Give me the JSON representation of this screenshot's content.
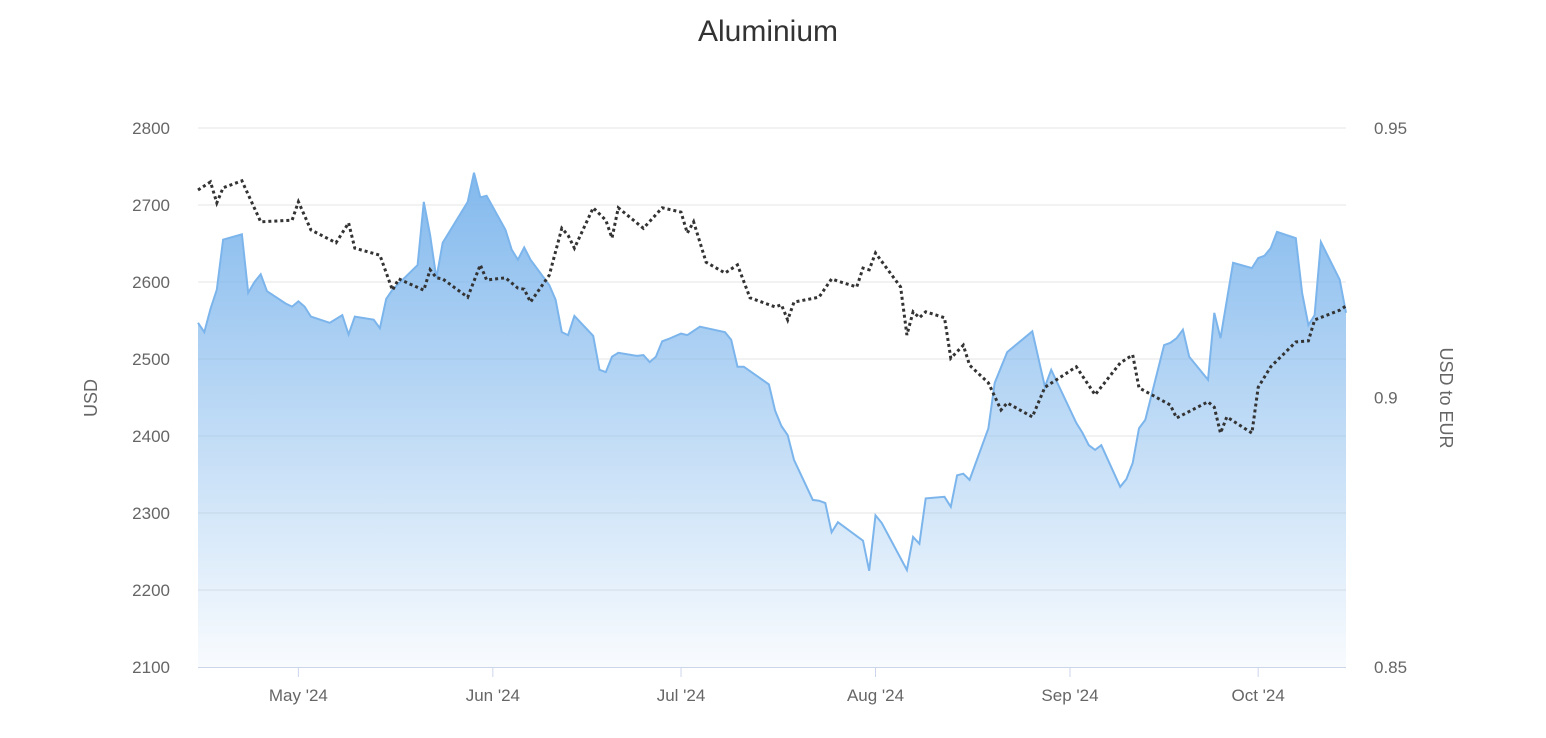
{
  "chart_data": {
    "type": "area",
    "title": "Aluminium",
    "x_type": "date",
    "xlim": [
      "2024-04-15",
      "2024-10-15"
    ],
    "x_ticks": [
      {
        "date": "2024-05-01",
        "label": "May '24"
      },
      {
        "date": "2024-06-01",
        "label": "Jun '24"
      },
      {
        "date": "2024-07-01",
        "label": "Jul '24"
      },
      {
        "date": "2024-08-01",
        "label": "Aug '24"
      },
      {
        "date": "2024-09-01",
        "label": "Sep '24"
      },
      {
        "date": "2024-10-01",
        "label": "Oct '24"
      }
    ],
    "y_left": {
      "label": "USD",
      "ylim": [
        2100,
        2800
      ],
      "ticks": [
        "2100",
        "2200",
        "2300",
        "2400",
        "2500",
        "2600",
        "2700",
        "2800"
      ]
    },
    "y_right": {
      "label": "USD to EUR",
      "ylim": [
        0.85,
        0.95
      ],
      "ticks": [
        "0.85",
        "0.9",
        "0.95"
      ]
    },
    "grid": true,
    "colors": {
      "area_line": "#7cb5ec",
      "area_top": "#7cb5ec",
      "fx_line": "#333333",
      "grid": "#e6e6e6",
      "axis": "#ccd6eb"
    },
    "series": [
      {
        "type": "area",
        "axis": "left",
        "points": [
          [
            "2024-04-15",
            2547
          ],
          [
            "2024-04-16",
            2535
          ],
          [
            "2024-04-17",
            2565
          ],
          [
            "2024-04-18",
            2590
          ],
          [
            "2024-04-19",
            2655
          ],
          [
            "2024-04-22",
            2662
          ],
          [
            "2024-04-23",
            2586
          ],
          [
            "2024-04-24",
            2600
          ],
          [
            "2024-04-25",
            2610
          ],
          [
            "2024-04-26",
            2588
          ],
          [
            "2024-04-29",
            2572
          ],
          [
            "2024-04-30",
            2568
          ],
          [
            "2024-05-01",
            2575
          ],
          [
            "2024-05-02",
            2568
          ],
          [
            "2024-05-03",
            2555
          ],
          [
            "2024-05-06",
            2547
          ],
          [
            "2024-05-08",
            2557
          ],
          [
            "2024-05-09",
            2532
          ],
          [
            "2024-05-10",
            2555
          ],
          [
            "2024-05-13",
            2551
          ],
          [
            "2024-05-14",
            2540
          ],
          [
            "2024-05-15",
            2578
          ],
          [
            "2024-05-16",
            2590
          ],
          [
            "2024-05-20",
            2622
          ],
          [
            "2024-05-21",
            2704
          ],
          [
            "2024-05-22",
            2661
          ],
          [
            "2024-05-23",
            2605
          ],
          [
            "2024-05-24",
            2651
          ],
          [
            "2024-05-28",
            2704
          ],
          [
            "2024-05-29",
            2742
          ],
          [
            "2024-05-30",
            2710
          ],
          [
            "2024-05-31",
            2712
          ],
          [
            "2024-06-03",
            2668
          ],
          [
            "2024-06-04",
            2642
          ],
          [
            "2024-06-05",
            2629
          ],
          [
            "2024-06-06",
            2645
          ],
          [
            "2024-06-07",
            2629
          ],
          [
            "2024-06-10",
            2596
          ],
          [
            "2024-06-11",
            2577
          ],
          [
            "2024-06-12",
            2535
          ],
          [
            "2024-06-13",
            2531
          ],
          [
            "2024-06-14",
            2556
          ],
          [
            "2024-06-17",
            2530
          ],
          [
            "2024-06-18",
            2486
          ],
          [
            "2024-06-19",
            2483
          ],
          [
            "2024-06-20",
            2503
          ],
          [
            "2024-06-21",
            2508
          ],
          [
            "2024-06-24",
            2504
          ],
          [
            "2024-06-25",
            2505
          ],
          [
            "2024-06-26",
            2496
          ],
          [
            "2024-06-27",
            2503
          ],
          [
            "2024-06-28",
            2523
          ],
          [
            "2024-06-29",
            2526
          ],
          [
            "2024-07-01",
            2533
          ],
          [
            "2024-07-02",
            2531
          ],
          [
            "2024-07-04",
            2542
          ],
          [
            "2024-07-08",
            2535
          ],
          [
            "2024-07-09",
            2525
          ],
          [
            "2024-07-10",
            2490
          ],
          [
            "2024-07-11",
            2490
          ],
          [
            "2024-07-15",
            2467
          ],
          [
            "2024-07-16",
            2433
          ],
          [
            "2024-07-17",
            2413
          ],
          [
            "2024-07-18",
            2401
          ],
          [
            "2024-07-19",
            2369
          ],
          [
            "2024-07-22",
            2317
          ],
          [
            "2024-07-23",
            2316
          ],
          [
            "2024-07-24",
            2313
          ],
          [
            "2024-07-25",
            2275
          ],
          [
            "2024-07-26",
            2288
          ],
          [
            "2024-07-30",
            2264
          ],
          [
            "2024-07-31",
            2225
          ],
          [
            "2024-08-01",
            2297
          ],
          [
            "2024-08-02",
            2287
          ],
          [
            "2024-08-06",
            2226
          ],
          [
            "2024-08-07",
            2269
          ],
          [
            "2024-08-08",
            2260
          ],
          [
            "2024-08-09",
            2319
          ],
          [
            "2024-08-12",
            2321
          ],
          [
            "2024-08-13",
            2308
          ],
          [
            "2024-08-14",
            2349
          ],
          [
            "2024-08-15",
            2351
          ],
          [
            "2024-08-16",
            2343
          ],
          [
            "2024-08-19",
            2410
          ],
          [
            "2024-08-20",
            2469
          ],
          [
            "2024-08-22",
            2509
          ],
          [
            "2024-08-26",
            2536
          ],
          [
            "2024-08-28",
            2464
          ],
          [
            "2024-08-29",
            2486
          ],
          [
            "2024-09-02",
            2417
          ],
          [
            "2024-09-03",
            2404
          ],
          [
            "2024-09-04",
            2388
          ],
          [
            "2024-09-05",
            2382
          ],
          [
            "2024-09-06",
            2388
          ],
          [
            "2024-09-09",
            2334
          ],
          [
            "2024-09-10",
            2344
          ],
          [
            "2024-09-11",
            2365
          ],
          [
            "2024-09-12",
            2410
          ],
          [
            "2024-09-13",
            2421
          ],
          [
            "2024-09-16",
            2518
          ],
          [
            "2024-09-17",
            2521
          ],
          [
            "2024-09-18",
            2527
          ],
          [
            "2024-09-19",
            2538
          ],
          [
            "2024-09-20",
            2503
          ],
          [
            "2024-09-23",
            2473
          ],
          [
            "2024-09-24",
            2560
          ],
          [
            "2024-09-25",
            2527
          ],
          [
            "2024-09-27",
            2625
          ],
          [
            "2024-09-30",
            2618
          ],
          [
            "2024-10-01",
            2631
          ],
          [
            "2024-10-02",
            2634
          ],
          [
            "2024-10-03",
            2644
          ],
          [
            "2024-10-04",
            2665
          ],
          [
            "2024-10-07",
            2657
          ],
          [
            "2024-10-08",
            2586
          ],
          [
            "2024-10-09",
            2544
          ],
          [
            "2024-10-10",
            2557
          ],
          [
            "2024-10-11",
            2652
          ],
          [
            "2024-10-14",
            2603
          ],
          [
            "2024-10-15",
            2560
          ]
        ]
      },
      {
        "type": "line",
        "axis": "right",
        "dash": "dotted",
        "points": [
          [
            "2024-04-15",
            0.9385
          ],
          [
            "2024-04-17",
            0.94
          ],
          [
            "2024-04-18",
            0.9361
          ],
          [
            "2024-04-19",
            0.9389
          ],
          [
            "2024-04-22",
            0.9402
          ],
          [
            "2024-04-25",
            0.9326
          ],
          [
            "2024-04-30",
            0.9329
          ],
          [
            "2024-05-01",
            0.9363
          ],
          [
            "2024-05-03",
            0.9311
          ],
          [
            "2024-05-07",
            0.9287
          ],
          [
            "2024-05-09",
            0.9324
          ],
          [
            "2024-05-10",
            0.9277
          ],
          [
            "2024-05-14",
            0.9264
          ],
          [
            "2024-05-16",
            0.9199
          ],
          [
            "2024-05-17",
            0.922
          ],
          [
            "2024-05-21",
            0.9199
          ],
          [
            "2024-05-22",
            0.9237
          ],
          [
            "2024-05-23",
            0.9222
          ],
          [
            "2024-05-24",
            0.922
          ],
          [
            "2024-05-28",
            0.9186
          ],
          [
            "2024-05-30",
            0.9246
          ],
          [
            "2024-05-31",
            0.9218
          ],
          [
            "2024-06-03",
            0.9222
          ],
          [
            "2024-06-05",
            0.9203
          ],
          [
            "2024-06-06",
            0.9201
          ],
          [
            "2024-06-07",
            0.9177
          ],
          [
            "2024-06-10",
            0.9227
          ],
          [
            "2024-06-12",
            0.9314
          ],
          [
            "2024-06-13",
            0.9301
          ],
          [
            "2024-06-14",
            0.9277
          ],
          [
            "2024-06-17",
            0.9352
          ],
          [
            "2024-06-19",
            0.9329
          ],
          [
            "2024-06-20",
            0.9296
          ],
          [
            "2024-06-21",
            0.9352
          ],
          [
            "2024-06-25",
            0.9314
          ],
          [
            "2024-06-28",
            0.9352
          ],
          [
            "2024-07-01",
            0.9344
          ],
          [
            "2024-07-02",
            0.9305
          ],
          [
            "2024-07-03",
            0.9326
          ],
          [
            "2024-07-05",
            0.9251
          ],
          [
            "2024-07-08",
            0.9231
          ],
          [
            "2024-07-10",
            0.9246
          ],
          [
            "2024-07-12",
            0.9185
          ],
          [
            "2024-07-16",
            0.9168
          ],
          [
            "2024-07-17",
            0.9172
          ],
          [
            "2024-07-18",
            0.9144
          ],
          [
            "2024-07-19",
            0.9177
          ],
          [
            "2024-07-23",
            0.9186
          ],
          [
            "2024-07-25",
            0.922
          ],
          [
            "2024-07-26",
            0.9216
          ],
          [
            "2024-07-29",
            0.9205
          ],
          [
            "2024-07-30",
            0.924
          ],
          [
            "2024-07-31",
            0.9237
          ],
          [
            "2024-08-01",
            0.9268
          ],
          [
            "2024-08-05",
            0.9205
          ],
          [
            "2024-08-06",
            0.9116
          ],
          [
            "2024-08-07",
            0.9159
          ],
          [
            "2024-08-08",
            0.9148
          ],
          [
            "2024-08-09",
            0.9159
          ],
          [
            "2024-08-12",
            0.9148
          ],
          [
            "2024-08-13",
            0.9073
          ],
          [
            "2024-08-15",
            0.9097
          ],
          [
            "2024-08-16",
            0.906
          ],
          [
            "2024-08-19",
            0.9027
          ],
          [
            "2024-08-21",
            0.8977
          ],
          [
            "2024-08-22",
            0.899
          ],
          [
            "2024-08-26",
            0.8964
          ],
          [
            "2024-08-28",
            0.9019
          ],
          [
            "2024-09-02",
            0.9057
          ],
          [
            "2024-09-05",
            0.9005
          ],
          [
            "2024-09-09",
            0.9064
          ],
          [
            "2024-09-11",
            0.9079
          ],
          [
            "2024-09-12",
            0.9018
          ],
          [
            "2024-09-17",
            0.8986
          ],
          [
            "2024-09-18",
            0.8962
          ],
          [
            "2024-09-23",
            0.8992
          ],
          [
            "2024-09-24",
            0.8982
          ],
          [
            "2024-09-25",
            0.8934
          ],
          [
            "2024-09-26",
            0.8964
          ],
          [
            "2024-09-30",
            0.8934
          ],
          [
            "2024-10-01",
            0.9019
          ],
          [
            "2024-10-03",
            0.9057
          ],
          [
            "2024-10-07",
            0.9103
          ],
          [
            "2024-10-09",
            0.9105
          ],
          [
            "2024-10-10",
            0.9144
          ],
          [
            "2024-10-14",
            0.9162
          ],
          [
            "2024-10-15",
            0.917
          ]
        ]
      }
    ]
  }
}
